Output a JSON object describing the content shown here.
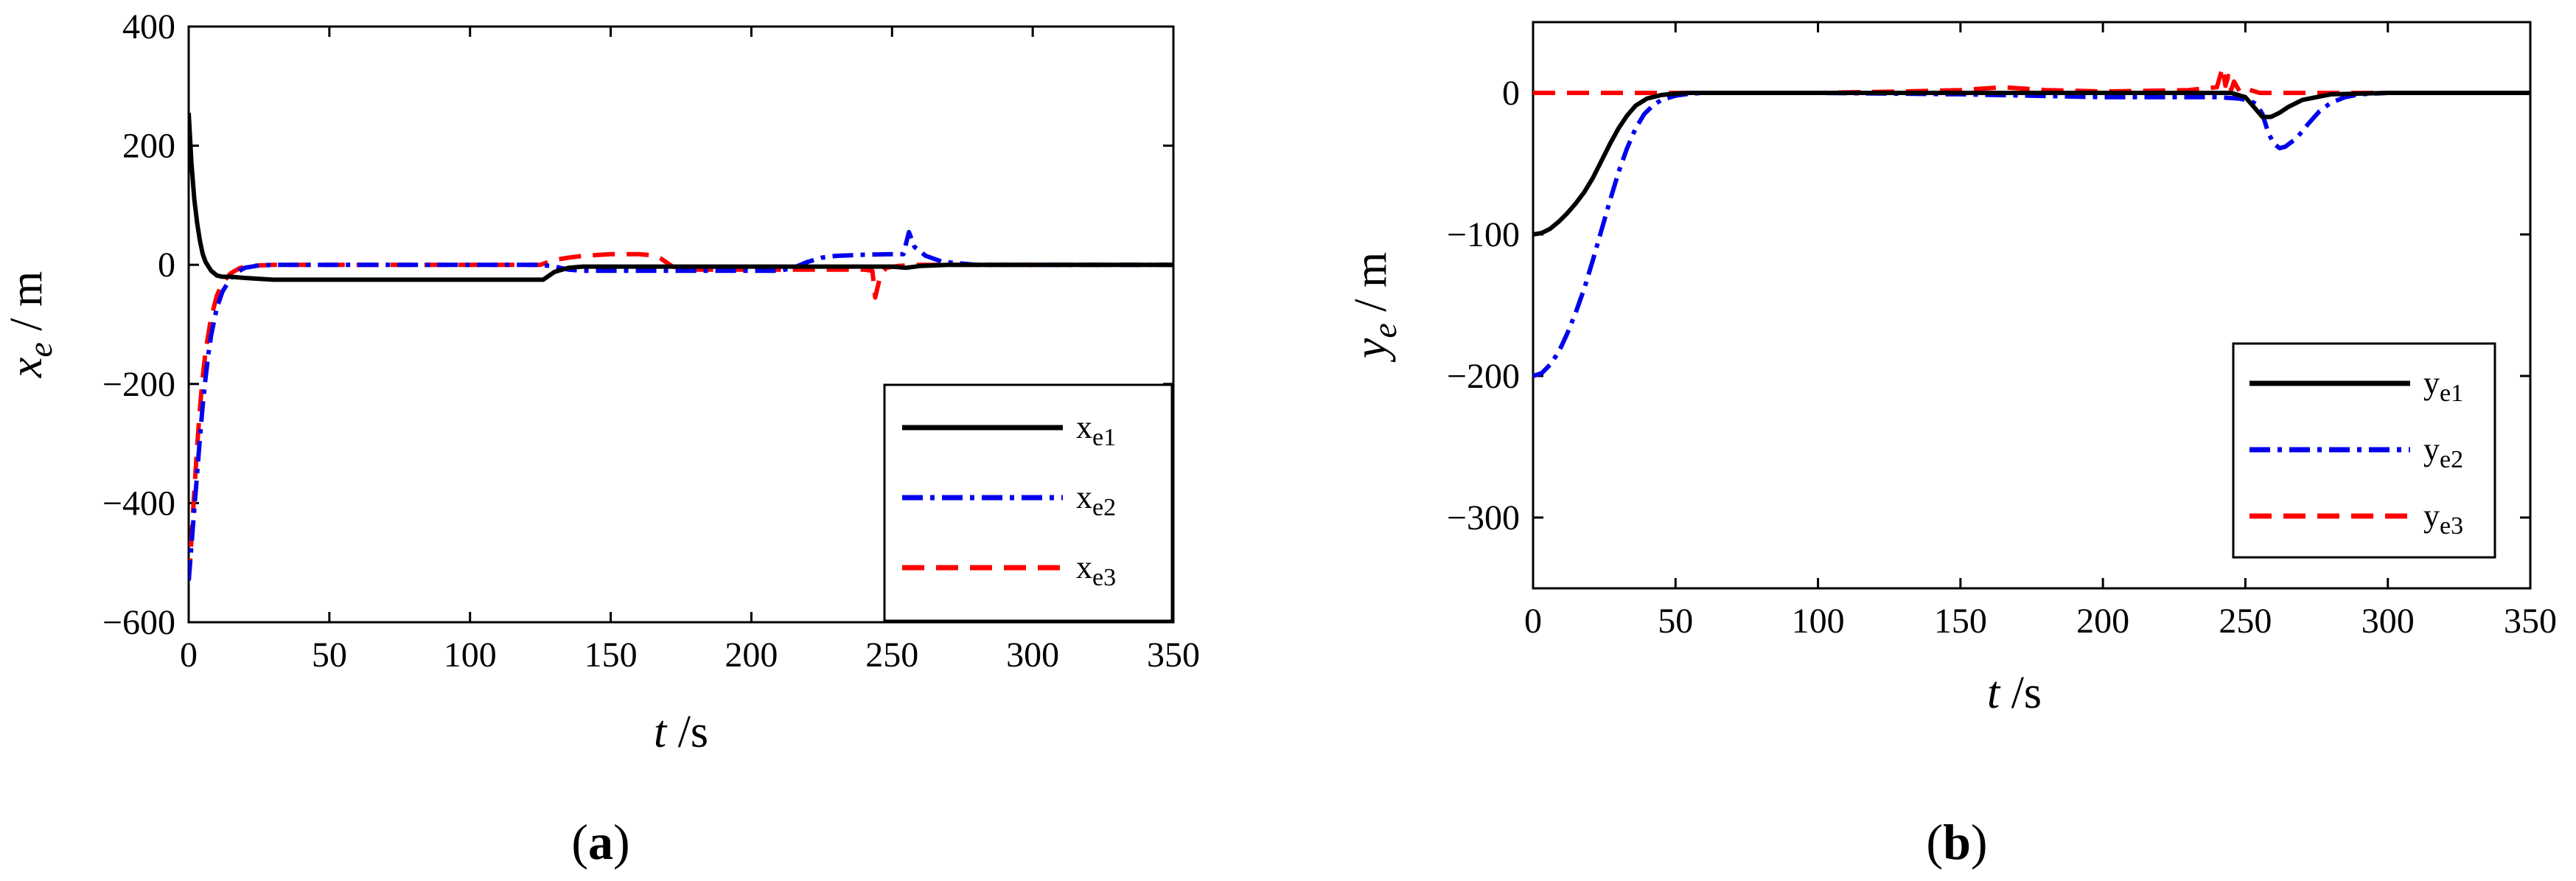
{
  "chart_data": [
    {
      "type": "line",
      "panel": "a",
      "caption_open": "(",
      "caption_letter": "a",
      "caption_close": ")",
      "xlabel_var": "t",
      "xlabel_unit": " /s",
      "ylabel_var": "x",
      "ylabel_sub": "e",
      "ylabel_unit": " / m",
      "xlim": [
        0,
        350
      ],
      "ylim": [
        -600,
        400
      ],
      "xticks": [
        0,
        50,
        100,
        150,
        200,
        250,
        300,
        350
      ],
      "xtick_labels": [
        "0",
        "50",
        "100",
        "150",
        "200",
        "250",
        "300",
        "350"
      ],
      "yticks": [
        -600,
        -400,
        -200,
        0,
        200,
        400
      ],
      "ytick_labels": [
        "−600",
        "−400",
        "−200",
        "0",
        "200",
        "400"
      ],
      "legend_position": "bottom-right",
      "series": [
        {
          "name": "x",
          "sub": "e1",
          "color": "#000000",
          "dash": "solid",
          "x": [
            0,
            1,
            2,
            3,
            4,
            5,
            6,
            8,
            10,
            12,
            15,
            20,
            30,
            40,
            60,
            80,
            100,
            120,
            126,
            130,
            135,
            140,
            150,
            200,
            240,
            250,
            255,
            260,
            270,
            300,
            350
          ],
          "y": [
            255,
            170,
            110,
            70,
            40,
            18,
            5,
            -10,
            -18,
            -20,
            -20,
            -22,
            -25,
            -25,
            -25,
            -25,
            -25,
            -25,
            -25,
            -12,
            -5,
            -3,
            -3,
            -3,
            -3,
            -3,
            -5,
            -2,
            0,
            0,
            0
          ]
        },
        {
          "name": "x",
          "sub": "e2",
          "color": "#0000ee",
          "dash": "dashdot",
          "x": [
            0,
            1,
            2,
            3,
            4,
            5,
            6,
            7,
            8,
            10,
            12,
            15,
            18,
            20,
            25,
            30,
            40,
            60,
            100,
            120,
            125,
            130,
            135,
            140,
            150,
            170,
            200,
            210,
            215,
            220,
            225,
            230,
            240,
            250,
            254,
            256,
            258,
            262,
            268,
            280,
            300,
            350
          ],
          "y": [
            -530,
            -470,
            -410,
            -350,
            -290,
            -235,
            -190,
            -150,
            -118,
            -72,
            -45,
            -22,
            -10,
            -5,
            -1,
            0,
            0,
            0,
            0,
            0,
            0,
            -3,
            -8,
            -10,
            -10,
            -10,
            -10,
            -10,
            -5,
            5,
            12,
            15,
            17,
            18,
            18,
            55,
            30,
            15,
            5,
            0,
            0,
            0
          ]
        },
        {
          "name": "x",
          "sub": "e3",
          "color": "#ff0000",
          "dash": "dashed",
          "x": [
            0,
            0.5,
            1,
            2,
            3,
            4,
            5,
            6,
            8,
            10,
            12,
            15,
            18,
            20,
            25,
            30,
            40,
            60,
            100,
            125,
            130,
            135,
            140,
            150,
            160,
            165,
            168,
            172,
            180,
            200,
            230,
            240,
            243,
            244,
            245,
            246,
            248,
            252,
            260,
            270,
            300,
            350
          ],
          "y": [
            -530,
            -500,
            -460,
            -380,
            -305,
            -240,
            -188,
            -145,
            -88,
            -52,
            -30,
            -14,
            -6,
            -3,
            -1,
            0,
            0,
            0,
            0,
            0,
            8,
            12,
            15,
            18,
            18,
            16,
            10,
            -3,
            -8,
            -8,
            -8,
            -8,
            -10,
            -55,
            -35,
            -15,
            -5,
            -2,
            0,
            0,
            0,
            0
          ]
        }
      ]
    },
    {
      "type": "line",
      "panel": "b",
      "caption_open": "(",
      "caption_letter": "b",
      "caption_close": ")",
      "xlabel_var": "t",
      "xlabel_unit": " /s",
      "ylabel_var": "y",
      "ylabel_sub": "e",
      "ylabel_unit": " / m",
      "xlim": [
        0,
        350
      ],
      "ylim": [
        -350,
        50
      ],
      "xticks": [
        0,
        50,
        100,
        150,
        200,
        250,
        300,
        350
      ],
      "xtick_labels": [
        "0",
        "50",
        "100",
        "150",
        "200",
        "250",
        "300",
        "350"
      ],
      "yticks": [
        -300,
        -200,
        -100,
        0
      ],
      "ytick_labels": [
        "−300",
        "−200",
        "−100",
        "0"
      ],
      "legend_position": "bottom-right",
      "series": [
        {
          "name": "y",
          "sub": "e1",
          "color": "#000000",
          "dash": "solid",
          "x": [
            0,
            3,
            6,
            9,
            12,
            15,
            18,
            21,
            24,
            27,
            30,
            33,
            36,
            40,
            45,
            50,
            55,
            60,
            100,
            200,
            245,
            250,
            253,
            256,
            259,
            262,
            265,
            270,
            280,
            300,
            350
          ],
          "y": [
            -100,
            -99,
            -96,
            -91,
            -85,
            -78,
            -70,
            -60,
            -48,
            -36,
            -25,
            -16,
            -9,
            -4,
            -1.5,
            -0.5,
            0,
            0,
            0,
            0,
            0,
            -3,
            -10,
            -17,
            -17,
            -14,
            -10,
            -5,
            -1,
            0,
            0
          ]
        },
        {
          "name": "y",
          "sub": "e2",
          "color": "#0000ee",
          "dash": "dashdot",
          "x": [
            0,
            3,
            6,
            9,
            12,
            15,
            18,
            21,
            24,
            27,
            30,
            33,
            36,
            39,
            42,
            45,
            50,
            55,
            60,
            70,
            100,
            150,
            200,
            240,
            248,
            252,
            254,
            256,
            258,
            260,
            262,
            264,
            268,
            272,
            276,
            280,
            285,
            290,
            300,
            350
          ],
          "y": [
            -200,
            -198,
            -192,
            -183,
            -170,
            -155,
            -138,
            -118,
            -97,
            -76,
            -56,
            -39,
            -25,
            -15,
            -9,
            -5,
            -2,
            -0.5,
            0,
            0,
            0,
            -1,
            -3,
            -3,
            -4,
            -6,
            -8,
            -15,
            -28,
            -36,
            -39,
            -38,
            -32,
            -22,
            -13,
            -7,
            -3,
            -1,
            0,
            0
          ]
        },
        {
          "name": "y",
          "sub": "e3",
          "color": "#ff0000",
          "dash": "dashed",
          "x": [
            0,
            50,
            100,
            130,
            150,
            165,
            180,
            200,
            230,
            240,
            242,
            243,
            244,
            245,
            246,
            248,
            250,
            255,
            260,
            300,
            350
          ],
          "y": [
            0,
            0,
            0,
            1,
            2,
            4,
            2,
            1,
            2,
            4,
            18,
            5,
            12,
            2,
            8,
            1,
            3,
            0,
            0,
            0,
            0
          ]
        }
      ]
    }
  ]
}
